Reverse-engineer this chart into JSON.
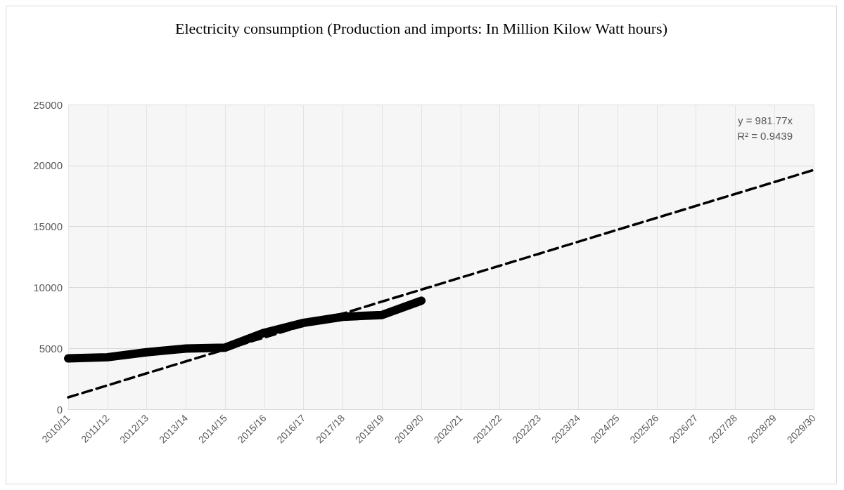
{
  "chart_data": {
    "type": "line",
    "title": "Electricity consumption (Production and imports: In Million Kilow Watt hours)",
    "categories": [
      "2010/11",
      "2011/12",
      "2012/13",
      "2013/14",
      "2014/15",
      "2015/16",
      "2016/17",
      "2017/18",
      "2018/19",
      "2019/20",
      "2020/21",
      "2021/22",
      "2022/23",
      "2023/24",
      "2024/25",
      "2025/26",
      "2026/27",
      "2027/28",
      "2028/29",
      "2029/30"
    ],
    "series": [
      {
        "color": "#000000",
        "line_style": "solid",
        "values": [
          4170,
          4270,
          4680,
          4980,
          5060,
          6280,
          7090,
          7590,
          7740,
          8910,
          null,
          null,
          null,
          null,
          null,
          null,
          null,
          null,
          null,
          null
        ]
      },
      {
        "color": "#000000",
        "line_style": "dashed",
        "values": [
          980,
          1960,
          2950,
          3930,
          4910,
          5890,
          6870,
          7850,
          8840,
          9820,
          10800,
          11780,
          12760,
          13750,
          14730,
          15710,
          16690,
          17670,
          18650,
          19640
        ]
      }
    ],
    "ylim": [
      0,
      25000
    ],
    "yticks": [
      0,
      5000,
      10000,
      15000,
      20000,
      25000
    ],
    "grid": true,
    "marker": "none",
    "annotations": [
      "y = 981.77x",
      "R² = 0.9439"
    ]
  }
}
